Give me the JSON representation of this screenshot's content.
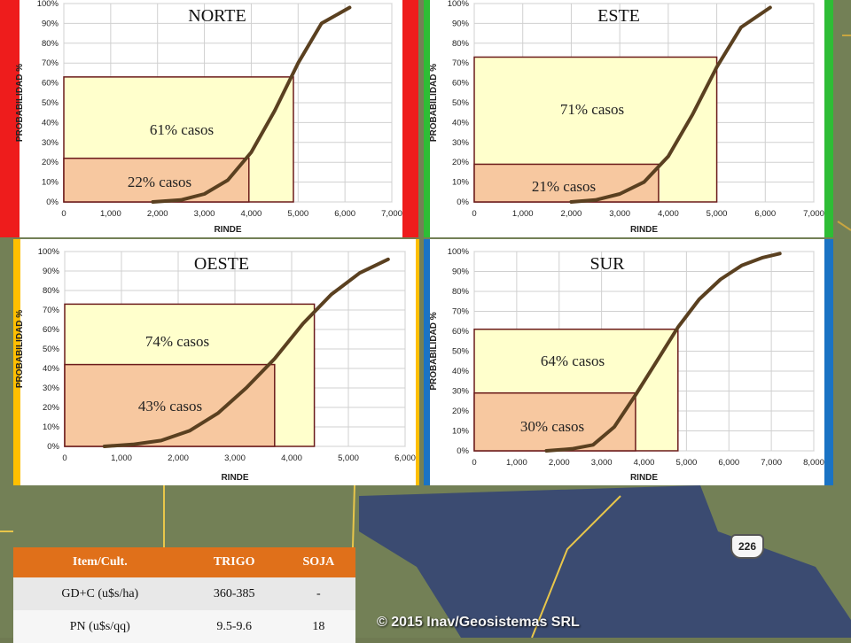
{
  "colors": {
    "norte": "#ee1c1c",
    "este": "#2ebd35",
    "oeste": "#ffbf00",
    "sur": "#1a73c4",
    "curve": "#5a4020",
    "band_outer": "#ffffcc",
    "band_inner": "#f7c8a0",
    "band_border": "#6b1b1b",
    "table_header": "#e0701a"
  },
  "chart_data": [
    {
      "id": "norte",
      "type": "line",
      "title": "NORTE",
      "xlabel": "RINDE",
      "ylabel": "PROBABILIDAD %",
      "xlim": [
        0,
        7000
      ],
      "ylim": [
        0,
        100
      ],
      "xticks": [
        "0",
        "1,000",
        "2,000",
        "3,000",
        "4,000",
        "5,000",
        "6,000",
        "7,000"
      ],
      "yticks": [
        "0%",
        "10%",
        "20%",
        "30%",
        "40%",
        "50%",
        "60%",
        "70%",
        "80%",
        "90%",
        "100%"
      ],
      "x": [
        1900,
        2500,
        3000,
        3500,
        4000,
        4500,
        5000,
        5500,
        6100
      ],
      "y": [
        0,
        1,
        4,
        11,
        25,
        46,
        70,
        90,
        98
      ],
      "bands": [
        {
          "x_max": 4900,
          "y_max": 63,
          "label": "61% casos"
        },
        {
          "x_max": 3950,
          "y_max": 22,
          "label": "22% casos"
        }
      ]
    },
    {
      "id": "este",
      "type": "line",
      "title": "ESTE",
      "xlabel": "RINDE",
      "ylabel": "PROBABILIDAD %",
      "xlim": [
        0,
        7000
      ],
      "ylim": [
        0,
        100
      ],
      "xticks": [
        "0",
        "1,000",
        "2,000",
        "3,000",
        "4,000",
        "5,000",
        "6,000",
        "7,000"
      ],
      "yticks": [
        "0%",
        "10%",
        "20%",
        "30%",
        "40%",
        "50%",
        "60%",
        "70%",
        "80%",
        "90%",
        "100%"
      ],
      "x": [
        2000,
        2500,
        3000,
        3500,
        4000,
        4500,
        5000,
        5500,
        6100
      ],
      "y": [
        0,
        1,
        4,
        10,
        23,
        44,
        68,
        88,
        98
      ],
      "bands": [
        {
          "x_max": 5000,
          "y_max": 73,
          "label": "71% casos"
        },
        {
          "x_max": 3800,
          "y_max": 19,
          "label": "21% casos"
        }
      ]
    },
    {
      "id": "oeste",
      "type": "line",
      "title": "OESTE",
      "xlabel": "RINDE",
      "ylabel": "PROBABILIDAD %",
      "xlim": [
        0,
        6000
      ],
      "ylim": [
        0,
        100
      ],
      "xticks": [
        "0",
        "1,000",
        "2,000",
        "3,000",
        "4,000",
        "5,000",
        "6,000"
      ],
      "yticks": [
        "0%",
        "10%",
        "20%",
        "30%",
        "40%",
        "50%",
        "60%",
        "70%",
        "80%",
        "90%",
        "100%"
      ],
      "x": [
        700,
        1200,
        1700,
        2200,
        2700,
        3200,
        3700,
        4200,
        4700,
        5200,
        5700
      ],
      "y": [
        0,
        1,
        3,
        8,
        17,
        30,
        45,
        63,
        78,
        89,
        96
      ],
      "bands": [
        {
          "x_max": 4400,
          "y_max": 73,
          "label": "74% casos"
        },
        {
          "x_max": 3700,
          "y_max": 42,
          "label": "43% casos"
        }
      ]
    },
    {
      "id": "sur",
      "type": "line",
      "title": "SUR",
      "xlabel": "RINDE",
      "ylabel": "PROBABILIDAD %",
      "xlim": [
        0,
        8000
      ],
      "ylim": [
        0,
        100
      ],
      "xticks": [
        "0",
        "1,000",
        "2,000",
        "3,000",
        "4,000",
        "5,000",
        "6,000",
        "7,000",
        "8,000"
      ],
      "yticks": [
        "0%",
        "10%",
        "20%",
        "30%",
        "40%",
        "50%",
        "60%",
        "70%",
        "80%",
        "90%",
        "100%"
      ],
      "x": [
        1700,
        2300,
        2800,
        3300,
        3800,
        4300,
        4800,
        5300,
        5800,
        6300,
        6800,
        7200
      ],
      "y": [
        0,
        1,
        3,
        12,
        28,
        45,
        62,
        76,
        86,
        93,
        97,
        99
      ],
      "bands": [
        {
          "x_max": 4800,
          "y_max": 61,
          "label": "64% casos"
        },
        {
          "x_max": 3800,
          "y_max": 29,
          "label": "30% casos"
        }
      ]
    }
  ],
  "table": {
    "headers": [
      "Item/Cult.",
      "TRIGO",
      "SOJA"
    ],
    "rows": [
      [
        "GD+C (u$s/ha)",
        "360-385",
        "-"
      ],
      [
        "PN (u$s/qq)",
        "9.5-9.6",
        "18"
      ]
    ]
  },
  "map": {
    "road_label": "226",
    "credit": "© 2015 Inav/Geosistemas SRL"
  }
}
